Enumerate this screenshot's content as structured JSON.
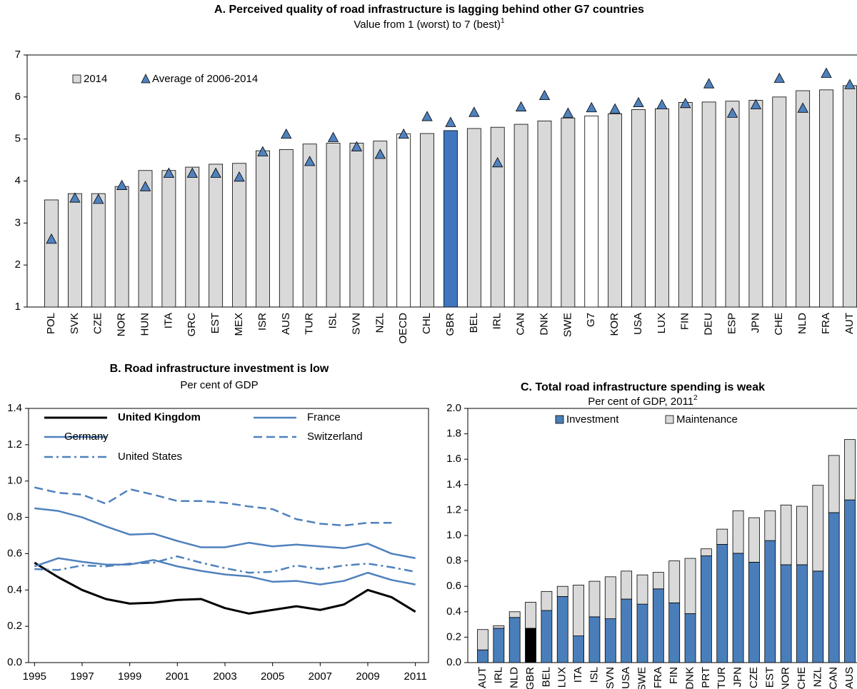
{
  "chart_data": [
    {
      "type": "bar",
      "title": "A. Perceived quality of road infrastructure is lagging behind other G7 countries",
      "subtitle": "Value from 1 (worst) to 7 (best)",
      "subtitle_superscript": "1",
      "categories": [
        "POL",
        "SVK",
        "CZE",
        "NOR",
        "HUN",
        "ITA",
        "GRC",
        "EST",
        "MEX",
        "ISR",
        "AUS",
        "TUR",
        "ISL",
        "SVN",
        "NZL",
        "OECD",
        "CHL",
        "GBR",
        "BEL",
        "IRL",
        "CAN",
        "DNK",
        "SWE",
        "G7",
        "KOR",
        "USA",
        "LUX",
        "FIN",
        "DEU",
        "ESP",
        "JPN",
        "CHE",
        "NLD",
        "FRA",
        "AUT"
      ],
      "series": [
        {
          "name": "2014",
          "color": "#d9d9d9",
          "colors": [
            "#d9d9d9",
            "#d9d9d9",
            "#d9d9d9",
            "#d9d9d9",
            "#d9d9d9",
            "#d9d9d9",
            "#d9d9d9",
            "#d9d9d9",
            "#d9d9d9",
            "#d9d9d9",
            "#d9d9d9",
            "#d9d9d9",
            "#d9d9d9",
            "#d9d9d9",
            "#d9d9d9",
            "#ffffff",
            "#d9d9d9",
            "#3f76bd",
            "#d9d9d9",
            "#d9d9d9",
            "#d9d9d9",
            "#d9d9d9",
            "#d9d9d9",
            "#ffffff",
            "#d9d9d9",
            "#d9d9d9",
            "#d9d9d9",
            "#d9d9d9",
            "#d9d9d9",
            "#d9d9d9",
            "#d9d9d9",
            "#d9d9d9",
            "#d9d9d9",
            "#d9d9d9",
            "#d9d9d9"
          ],
          "values": [
            3.55,
            3.7,
            3.7,
            3.87,
            4.25,
            4.25,
            4.33,
            4.4,
            4.42,
            4.72,
            4.75,
            4.88,
            4.9,
            4.9,
            4.95,
            5.12,
            5.13,
            5.2,
            5.25,
            5.28,
            5.35,
            5.43,
            5.5,
            5.55,
            5.6,
            5.7,
            5.72,
            5.87,
            5.88,
            5.9,
            5.92,
            6.0,
            6.15,
            6.17,
            6.27
          ]
        },
        {
          "name": "Average of 2006-2014",
          "color": "#4f81bd",
          "marker": "triangle",
          "values": [
            2.6,
            3.58,
            3.55,
            3.88,
            3.85,
            4.17,
            4.17,
            4.17,
            4.08,
            4.68,
            5.1,
            4.45,
            5.02,
            4.8,
            4.62,
            5.1,
            5.52,
            5.38,
            5.62,
            4.42,
            5.75,
            6.02,
            5.6,
            5.73,
            5.7,
            5.85,
            5.8,
            5.83,
            6.3,
            5.6,
            5.8,
            6.43,
            5.72,
            6.55,
            6.28
          ]
        }
      ],
      "ylim": [
        1,
        7
      ],
      "yticks": [
        1,
        2,
        3,
        4,
        5,
        6,
        7
      ]
    },
    {
      "type": "line",
      "title": "B. Road infrastructure investment is low",
      "subtitle": "Per cent of GDP",
      "x": [
        1995,
        1996,
        1997,
        1998,
        1999,
        2000,
        2001,
        2002,
        2003,
        2004,
        2005,
        2006,
        2007,
        2008,
        2009,
        2010,
        2011
      ],
      "xlim": [
        1994.75,
        2011.55
      ],
      "xticks": [
        1995,
        1997,
        1999,
        2001,
        2003,
        2005,
        2007,
        2009,
        2011
      ],
      "ylim": [
        0,
        1.4
      ],
      "yticks": [
        {
          "value": 0,
          "label": "0.0"
        },
        0.2,
        0.4,
        0.6,
        0.8,
        {
          "value": 1,
          "label": "1.0"
        },
        1.2,
        1.4
      ],
      "series": [
        {
          "name": "United Kingdom",
          "color": "#000000",
          "dash": "solid",
          "bold": true,
          "values": [
            0.55,
            0.47,
            0.4,
            0.35,
            0.325,
            0.33,
            0.345,
            0.35,
            0.3,
            0.27,
            0.29,
            0.31,
            0.29,
            0.32,
            0.4,
            0.36,
            0.28
          ]
        },
        {
          "name": "France",
          "color": "#4f81bd",
          "dash": "solid",
          "values": [
            0.85,
            0.835,
            0.8,
            0.75,
            0.705,
            0.71,
            0.67,
            0.635,
            0.635,
            0.66,
            0.64,
            0.65,
            0.64,
            0.63,
            0.655,
            0.6,
            0.575
          ]
        },
        {
          "name": "Germany",
          "color": "#4f81bd",
          "dash": "solid",
          "values": [
            0.53,
            0.575,
            0.555,
            0.54,
            0.54,
            0.565,
            0.53,
            0.505,
            0.485,
            0.475,
            0.445,
            0.45,
            0.43,
            0.45,
            0.495,
            0.455,
            0.43
          ]
        },
        {
          "name": "Switzerland",
          "color": "#4f81bd",
          "dash": "dashed",
          "values": [
            0.965,
            0.935,
            0.925,
            0.875,
            0.955,
            0.925,
            0.89,
            0.89,
            0.88,
            0.86,
            0.845,
            0.79,
            0.765,
            0.755,
            0.77,
            0.77,
            null
          ]
        },
        {
          "name": "United States",
          "color": "#4f81bd",
          "dash": "dashdot",
          "values": [
            0.515,
            0.51,
            0.535,
            0.53,
            0.545,
            0.55,
            0.585,
            0.55,
            0.52,
            0.495,
            0.5,
            0.535,
            0.515,
            0.535,
            0.545,
            0.525,
            0.5
          ]
        }
      ]
    },
    {
      "type": "bar",
      "stacked": true,
      "title": "C. Total road infrastructure spending is weak",
      "subtitle": "Per cent of GDP, 2011",
      "subtitle_superscript": "2",
      "categories": [
        "AUT",
        "IRL",
        "NLD",
        "GBR",
        "BEL",
        "LUX",
        "ITA",
        "ISL",
        "SVN",
        "USA",
        "SWE",
        "FRA",
        "FIN",
        "DNK",
        "PRT",
        "TUR",
        "JPN",
        "CZE",
        "EST",
        "NOR",
        "CHE",
        "NZL",
        "CAN",
        "AUS"
      ],
      "series": [
        {
          "name": "Investment",
          "color": "#4a7ebb",
          "colors": [
            "#4a7ebb",
            "#4a7ebb",
            "#4a7ebb",
            "#000000",
            "#4a7ebb",
            "#4a7ebb",
            "#4a7ebb",
            "#4a7ebb",
            "#4a7ebb",
            "#4a7ebb",
            "#4a7ebb",
            "#4a7ebb",
            "#4a7ebb",
            "#4a7ebb",
            "#4a7ebb",
            "#4a7ebb",
            "#4a7ebb",
            "#4a7ebb",
            "#4a7ebb",
            "#4a7ebb",
            "#4a7ebb",
            "#4a7ebb",
            "#4a7ebb",
            "#4a7ebb"
          ],
          "values": [
            0.1,
            0.27,
            0.355,
            0.27,
            0.41,
            0.52,
            0.21,
            0.36,
            0.345,
            0.5,
            0.46,
            0.58,
            0.47,
            0.385,
            0.84,
            0.93,
            0.86,
            0.79,
            0.96,
            0.77,
            0.77,
            0.72,
            1.18,
            1.28
          ]
        },
        {
          "name": "Maintenance",
          "color": "#d9d9d9",
          "values": [
            0.16,
            0.02,
            0.045,
            0.205,
            0.15,
            0.08,
            0.4,
            0.28,
            0.33,
            0.22,
            0.23,
            0.13,
            0.33,
            0.435,
            0.055,
            0.12,
            0.335,
            0.35,
            0.235,
            0.47,
            0.46,
            0.675,
            0.45,
            0.475
          ]
        }
      ],
      "ylim": [
        0,
        2
      ],
      "yticks": [
        {
          "value": 0,
          "label": "0.0"
        },
        0.2,
        0.4,
        0.6,
        0.8,
        {
          "value": 1,
          "label": "1.0"
        },
        1.2,
        1.4,
        1.6,
        1.8,
        {
          "value": 2,
          "label": "2.0"
        }
      ]
    }
  ]
}
